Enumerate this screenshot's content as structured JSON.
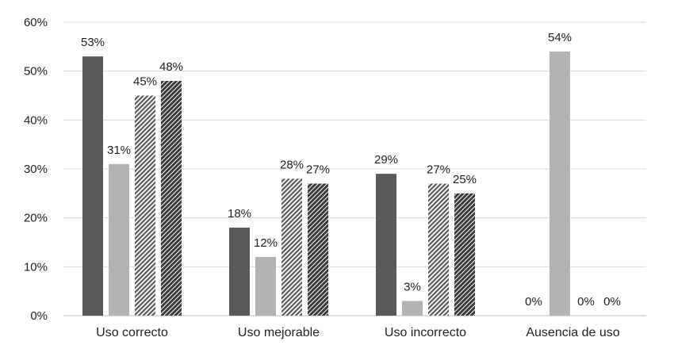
{
  "chart_data": {
    "type": "bar",
    "categories": [
      "Uso correcto",
      "Uso mejorable",
      "Uso incorrecto",
      "Ausencia de uso"
    ],
    "series": [
      {
        "values": [
          53,
          18,
          29,
          0
        ],
        "color": "#595959",
        "pattern": "solid"
      },
      {
        "values": [
          31,
          12,
          3,
          54
        ],
        "color": "#b3b3b3",
        "pattern": "solid"
      },
      {
        "values": [
          45,
          28,
          27,
          0
        ],
        "color": "#595959",
        "pattern": "diagonal-hatch-light"
      },
      {
        "values": [
          48,
          27,
          25,
          0
        ],
        "color": "#404040",
        "pattern": "diagonal-hatch-dark"
      }
    ],
    "value_format": "percent",
    "ylim": [
      0,
      60
    ],
    "yticks": [
      0,
      10,
      20,
      30,
      40,
      50,
      60
    ],
    "ytick_labels": [
      "0%",
      "10%",
      "20%",
      "30%",
      "40%",
      "50%",
      "60%"
    ],
    "grid": true,
    "legend": "none",
    "title": "",
    "xlabel": "",
    "ylabel": ""
  }
}
